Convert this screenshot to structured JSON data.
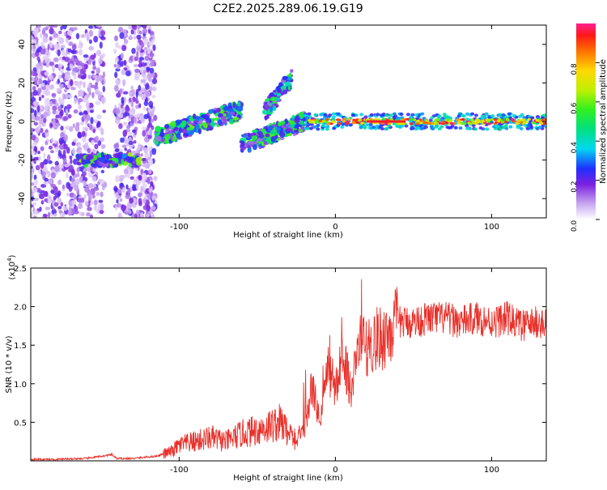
{
  "title": "C2E2.2025.289.06.19.G19",
  "chart_data": [
    {
      "type": "heatmap",
      "name": "spectrogram",
      "xlabel": "Height of straight line (km)",
      "ylabel": "Frequency (Hz)",
      "xlim": [
        -195,
        135
      ],
      "ylim": [
        -50,
        50
      ],
      "xticks": [
        -100,
        0,
        100
      ],
      "yticks": [
        -40,
        -20,
        0,
        20,
        40
      ],
      "colorbar": {
        "label": "Normalized spectral amplitude",
        "range": [
          0.0,
          1.0
        ],
        "ticks": [
          0.0,
          0.2,
          0.4,
          0.6,
          0.8
        ]
      },
      "features": [
        {
          "label": "noise",
          "x_range": [
            -195,
            -115
          ],
          "freq_range": [
            -50,
            50
          ],
          "amplitude": 0.1
        },
        {
          "label": "early band",
          "x_range": [
            -165,
            -125
          ],
          "freq": -20,
          "amplitude": 0.5
        },
        {
          "label": "rising band",
          "x_range": [
            -115,
            -60
          ],
          "freq": 5,
          "amplitude": 0.45
        },
        {
          "label": "branch",
          "x_range": [
            -45,
            -28
          ],
          "freq": 12,
          "amplitude": 0.4
        },
        {
          "label": "converging band",
          "x_range": [
            -60,
            -20
          ],
          "freq": -5,
          "amplitude": 0.45
        },
        {
          "label": "carrier line",
          "x_range": [
            -20,
            135
          ],
          "freq": 0,
          "amplitude": 0.95
        }
      ]
    },
    {
      "type": "line",
      "name": "snr",
      "xlabel": "Height of straight line (km)",
      "ylabel": "SNR (10 * v/v)",
      "scale_label": "(x10",
      "scale_exp": "4",
      "xlim": [
        -195,
        135
      ],
      "ylim": [
        0,
        2.5
      ],
      "xticks": [
        -100,
        0,
        100
      ],
      "yticks": [
        0.5,
        1.0,
        1.5,
        2.0,
        2.5
      ],
      "color": "#e8302a",
      "series": [
        {
          "name": "SNR",
          "x": [
            -195,
            -180,
            -160,
            -143,
            -140,
            -130,
            -115,
            -105,
            -100,
            -90,
            -80,
            -70,
            -60,
            -50,
            -42,
            -35,
            -28,
            -20,
            -15,
            -10,
            -5,
            0,
            5,
            10,
            15,
            20,
            30,
            40,
            50,
            60,
            70,
            80,
            90,
            100,
            110,
            120,
            130,
            135
          ],
          "y": [
            0.02,
            0.02,
            0.03,
            0.08,
            0.03,
            0.03,
            0.06,
            0.12,
            0.2,
            0.25,
            0.3,
            0.25,
            0.35,
            0.4,
            0.45,
            0.5,
            0.3,
            0.3,
            1.0,
            0.5,
            1.2,
            0.9,
            1.4,
            0.9,
            1.5,
            1.5,
            1.6,
            1.8,
            1.8,
            1.85,
            1.85,
            1.8,
            1.85,
            1.8,
            1.85,
            1.75,
            1.8,
            1.75
          ]
        }
      ]
    }
  ]
}
